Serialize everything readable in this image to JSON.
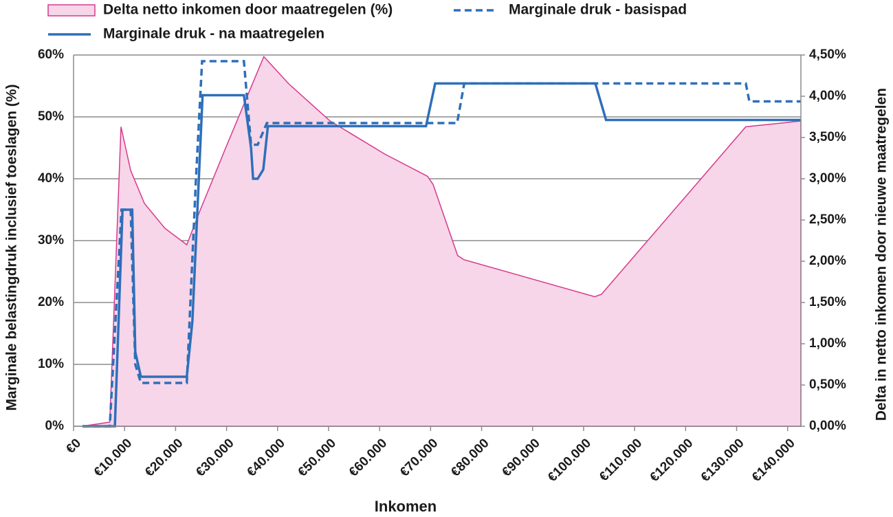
{
  "chart_data": {
    "type": "line",
    "x_label": "Inkomen",
    "y_label": "Marginale belastingdruk inclusief toeslagen (%)",
    "y2_label": "Delta in netto inkomen door nieuwe maatregelen",
    "xlim": [
      0,
      142600
    ],
    "xticks": [
      {
        "value": 0,
        "label": "€0"
      },
      {
        "value": 10000,
        "label": "€10.000"
      },
      {
        "value": 20000,
        "label": "€20.000"
      },
      {
        "value": 30000,
        "label": "€30.000"
      },
      {
        "value": 40000,
        "label": "€40.000"
      },
      {
        "value": 50000,
        "label": "€50.000"
      },
      {
        "value": 60000,
        "label": "€60.000"
      },
      {
        "value": 70000,
        "label": "€70.000"
      },
      {
        "value": 80000,
        "label": "€80.000"
      },
      {
        "value": 90000,
        "label": "€90.000"
      },
      {
        "value": 100000,
        "label": "€100.000"
      },
      {
        "value": 110000,
        "label": "€110.000"
      },
      {
        "value": 120000,
        "label": "€120.000"
      },
      {
        "value": 130000,
        "label": "€130.000"
      },
      {
        "value": 140000,
        "label": "€140.000"
      }
    ],
    "ylim": [
      0,
      60
    ],
    "yticks": [
      {
        "value": 0,
        "label": "0%"
      },
      {
        "value": 10,
        "label": "10%"
      },
      {
        "value": 20,
        "label": "20%"
      },
      {
        "value": 30,
        "label": "30%"
      },
      {
        "value": 40,
        "label": "40%"
      },
      {
        "value": 50,
        "label": "50%"
      },
      {
        "value": 60,
        "label": "60%"
      }
    ],
    "y2lim": [
      0,
      4.5
    ],
    "y2ticks": [
      {
        "value": 0,
        "label": "0,00%"
      },
      {
        "value": 0.5,
        "label": "0,50%"
      },
      {
        "value": 1,
        "label": "1,00%"
      },
      {
        "value": 1.5,
        "label": "1,50%"
      },
      {
        "value": 2,
        "label": "2,00%"
      },
      {
        "value": 2.5,
        "label": "2,50%"
      },
      {
        "value": 3,
        "label": "3,00%"
      },
      {
        "value": 3.5,
        "label": "3,50%"
      },
      {
        "value": 4,
        "label": "4,00%"
      },
      {
        "value": 4.5,
        "label": "4,50%"
      }
    ],
    "grid": true,
    "series": [
      {
        "name": "Delta netto inkomen door maatregelen (%)",
        "kind": "area",
        "axis": "y2",
        "color": "#d6398c",
        "fill": "#f6d6e8",
        "x": [
          1750,
          7100,
          9300,
          11200,
          13900,
          17900,
          22200,
          24700,
          30000,
          37300,
          42200,
          50300,
          61000,
          69400,
          70500,
          75300,
          76500,
          102200,
          103500,
          131800,
          142600
        ],
        "values": [
          0,
          0.05,
          3.63,
          3.1,
          2.7,
          2.4,
          2.2,
          2.6,
          3.4,
          4.48,
          4.15,
          3.7,
          3.3,
          3.03,
          2.93,
          2.07,
          2.02,
          1.57,
          1.6,
          3.63,
          3.7
        ]
      },
      {
        "name": "Marginale druk - basispad",
        "kind": "dashed",
        "color": "#2e6fba",
        "x": [
          1750,
          7100,
          9400,
          11200,
          12100,
          13200,
          22200,
          24000,
          25200,
          33400,
          34800,
          36100,
          37900,
          75200,
          76600,
          131800,
          132500,
          142600
        ],
        "values": [
          0,
          0,
          35,
          35,
          10,
          7,
          7,
          40,
          59,
          59,
          45.5,
          45.5,
          49,
          49,
          55.4,
          55.4,
          52.5,
          52.5
        ]
      },
      {
        "name": "Marginale druk - na maatregelen",
        "kind": "solid",
        "color": "#2e6fba",
        "x": [
          1750,
          8100,
          9600,
          11500,
          12100,
          13200,
          22200,
          23300,
          25300,
          33400,
          34800,
          35200,
          36100,
          37200,
          38100,
          69100,
          70900,
          102300,
          104400,
          142600
        ],
        "values": [
          0,
          0,
          35,
          35,
          12,
          8,
          8,
          17,
          53.5,
          53.5,
          45,
          40,
          40,
          41.5,
          48.5,
          48.5,
          55.4,
          55.4,
          49.5,
          49.5
        ]
      }
    ]
  }
}
